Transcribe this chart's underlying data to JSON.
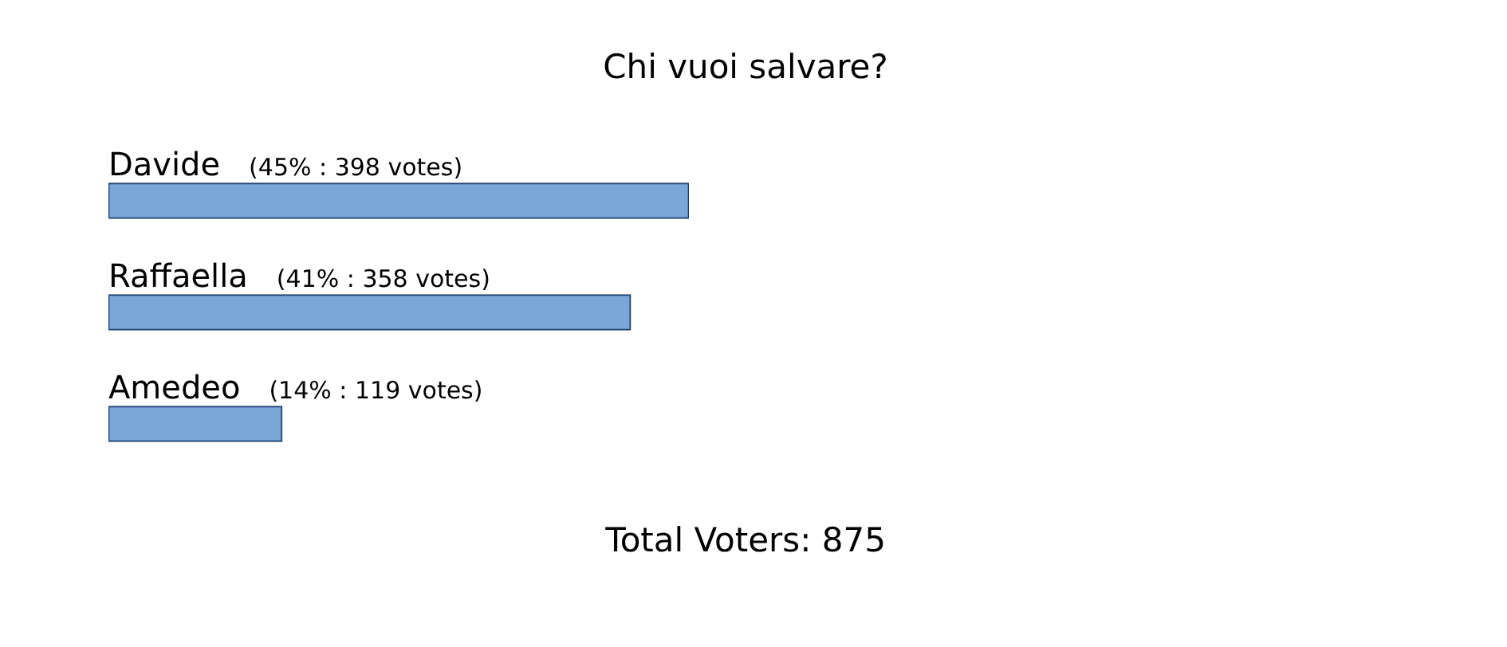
{
  "chart_data": {
    "type": "bar",
    "orientation": "horizontal",
    "title": "Chi vuoi salvare?",
    "categories": [
      "Davide",
      "Raffaella",
      "Amedeo"
    ],
    "values": [
      398,
      358,
      119
    ],
    "value_labels": [
      "(45% : 398 votes)",
      "(41% : 358 votes)",
      "(14% : 119 votes)"
    ],
    "color": "#7ba7d8",
    "annotations": [
      "Total Voters: 875"
    ]
  }
}
